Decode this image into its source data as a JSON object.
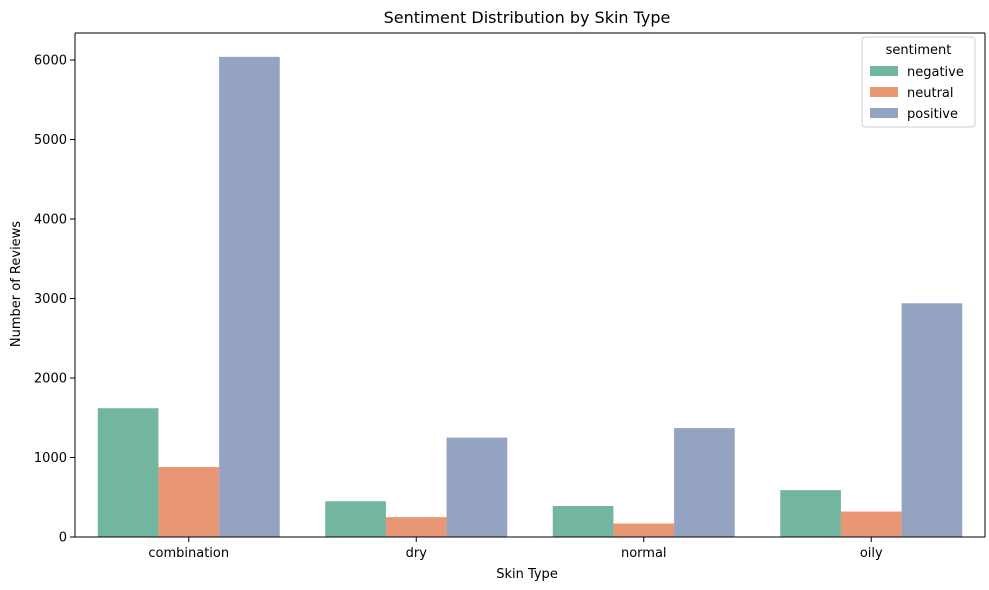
{
  "chart_data": {
    "type": "bar",
    "title": "Sentiment Distribution by Skin Type",
    "xlabel": "Skin Type",
    "ylabel": "Number of Reviews",
    "categories": [
      "combination",
      "dry",
      "normal",
      "oily"
    ],
    "series": [
      {
        "name": "negative",
        "color": "#72b6a1",
        "values": [
          1620,
          450,
          390,
          590
        ]
      },
      {
        "name": "neutral",
        "color": "#e99675",
        "values": [
          880,
          250,
          170,
          320
        ]
      },
      {
        "name": "positive",
        "color": "#95a3c3",
        "values": [
          6040,
          1250,
          1370,
          2940
        ]
      }
    ],
    "ylim": [
      0,
      6340
    ],
    "yticks": [
      0,
      1000,
      2000,
      3000,
      4000,
      5000,
      6000
    ],
    "legend": {
      "title": "sentiment",
      "placement": "top-right"
    },
    "grid": false
  }
}
